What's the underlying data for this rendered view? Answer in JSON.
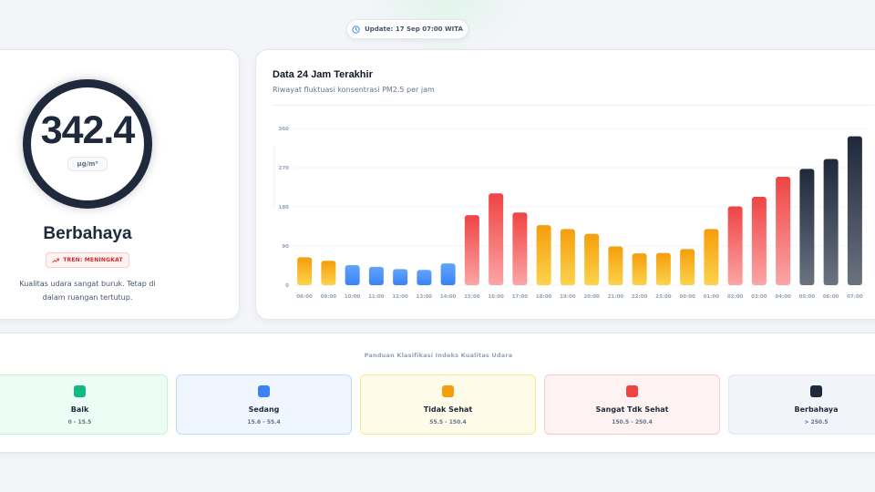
{
  "update_label": "Update: 17 Sep 07:00 WITA",
  "current": {
    "value": "342.4",
    "unit": "µg/m³",
    "status": "Berbahaya",
    "trend": "TREN: MENINGKAT",
    "description": "Kualitas udara sangat buruk. Tetap di dalam ruangan tertutup."
  },
  "chart_card": {
    "title": "Data 24 Jam Terakhir",
    "subtitle": "Riwayat fluktuasi konsentrasi PM2.5 per jam"
  },
  "chart_data": {
    "type": "bar",
    "title": "Data 24 Jam Terakhir",
    "subtitle": "Riwayat fluktuasi konsentrasi PM2.5 per jam",
    "categories": [
      "08:00",
      "09:00",
      "10:00",
      "11:00",
      "12:00",
      "13:00",
      "14:00",
      "15:00",
      "16:00",
      "17:00",
      "18:00",
      "19:00",
      "20:00",
      "21:00",
      "22:00",
      "23:00",
      "00:00",
      "01:00",
      "02:00",
      "03:00",
      "04:00",
      "05:00",
      "06:00",
      "07:00"
    ],
    "values": [
      64,
      56,
      46,
      42,
      37,
      35,
      50,
      161,
      211,
      167,
      138,
      129,
      118,
      89,
      73,
      74,
      83,
      129,
      181,
      203,
      249,
      267,
      290,
      342
    ],
    "yticks": [
      0,
      90,
      180,
      270,
      360
    ],
    "ylim": [
      0,
      360
    ],
    "grid": true,
    "color_bands": [
      {
        "max": 55.5,
        "top": "#60a5fa",
        "bottom": "#3b82f6"
      },
      {
        "max": 150.5,
        "top": "#f59e0b",
        "bottom": "#fcd34d"
      },
      {
        "max": 250.5,
        "top": "#ef4444",
        "bottom": "#fca5a5"
      },
      {
        "max": 10000,
        "top": "#1e293b",
        "bottom": "#6b7280"
      }
    ]
  },
  "guide": {
    "title": "Panduan Klasifikasi Indeks Kualitas Udara",
    "categories": [
      {
        "name": "Baik",
        "range": "0 - 15.5",
        "color": "#10b981",
        "bg": "#ecfdf5",
        "border": "#bbf7d0"
      },
      {
        "name": "Sedang",
        "range": "15.6 - 55.4",
        "color": "#3b82f6",
        "bg": "#eff6ff",
        "border": "#bfdbfe"
      },
      {
        "name": "Tidak Sehat",
        "range": "55.5 - 150.4",
        "color": "#f59e0b",
        "bg": "#fefce8",
        "border": "#fde68a"
      },
      {
        "name": "Sangat Tdk Sehat",
        "range": "150.5 - 250.4",
        "color": "#ef4444",
        "bg": "#fef2f2",
        "border": "#fecaca"
      },
      {
        "name": "Berbahaya",
        "range": "> 250.5",
        "color": "#1e293b",
        "bg": "#f1f5f9",
        "border": "#e2e8f0"
      }
    ]
  }
}
